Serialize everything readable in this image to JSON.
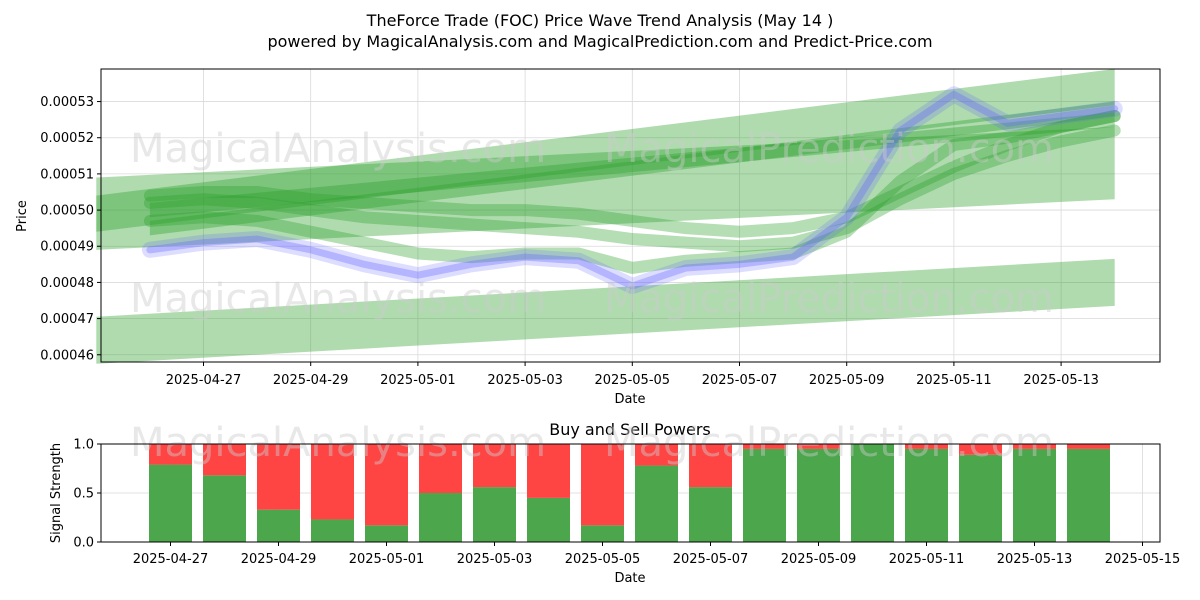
{
  "title_line1": "TheForce Trade (FOC) Price Wave Trend Analysis (May 14 )",
  "title_line2": "powered by MagicalAnalysis.com and MagicalPrediction.com and Predict-Price.com",
  "watermarks": [
    "MagicalAnalysis.com",
    "MagicalPrediction.com"
  ],
  "colors": {
    "band": "#2ca02c",
    "price": "#6666ff",
    "buy": "#4ca64c",
    "sell": "#ff4444",
    "grid": "#d9d9d9"
  },
  "chart_data": [
    {
      "type": "area",
      "xlabel": "Date",
      "ylabel": "Price",
      "x_ticks": [
        "2025-04-27",
        "2025-04-29",
        "2025-05-01",
        "2025-05-03",
        "2025-05-05",
        "2025-05-07",
        "2025-05-09",
        "2025-05-11",
        "2025-05-13"
      ],
      "y_ticks": [
        "0.00046",
        "0.00047",
        "0.00048",
        "0.00049",
        "0.00050",
        "0.00051",
        "0.00052",
        "0.00053"
      ],
      "ylim": [
        0.000458,
        0.000539
      ],
      "grid": true,
      "price_series": {
        "dates": [
          "2025-04-26",
          "2025-04-27",
          "2025-04-28",
          "2025-04-29",
          "2025-04-30",
          "2025-05-01",
          "2025-05-02",
          "2025-05-03",
          "2025-05-04",
          "2025-05-05",
          "2025-05-06",
          "2025-05-07",
          "2025-05-08",
          "2025-05-09",
          "2025-05-10",
          "2025-05-11",
          "2025-05-12",
          "2025-05-13",
          "2025-05-14"
        ],
        "values": [
          0.000489,
          0.000491,
          0.000492,
          0.000489,
          0.000485,
          0.000482,
          0.000485,
          0.000487,
          0.000486,
          0.000479,
          0.000484,
          0.000485,
          0.000487,
          0.000498,
          0.000522,
          0.000532,
          0.000524,
          0.000526,
          0.000528
        ]
      },
      "trend_bands": [
        {
          "start": [
            "2025-04-25",
            0.000499
          ],
          "end": [
            "2025-05-14",
            0.000534
          ],
          "width": 1e-05
        },
        {
          "start": [
            "2025-04-25",
            0.000499
          ],
          "end": [
            "2025-05-14",
            0.000513
          ],
          "width": 2e-05
        },
        {
          "start": [
            "2025-04-25",
            0.000464
          ],
          "end": [
            "2025-05-14",
            0.00048
          ],
          "width": 1.3e-05
        },
        {
          "start": [
            "2025-04-26",
            0.0005
          ],
          "end": [
            "2025-05-14",
            0.000525
          ],
          "width": 4e-06
        },
        {
          "start": [
            "2025-04-26",
            0.000495
          ],
          "end": [
            "2025-05-14",
            0.000528
          ],
          "width": 4e-06
        }
      ],
      "wave_series": [
        {
          "dates": [
            "2025-04-26",
            "2025-04-27",
            "2025-04-28",
            "2025-04-29",
            "2025-04-30",
            "2025-05-01",
            "2025-05-02",
            "2025-05-03",
            "2025-05-04",
            "2025-05-05",
            "2025-05-06",
            "2025-05-07",
            "2025-05-08",
            "2025-05-09",
            "2025-05-10",
            "2025-05-11",
            "2025-05-12",
            "2025-05-13",
            "2025-05-14"
          ],
          "values": [
            0.000502,
            0.000503,
            0.000502,
            0.0005,
            0.000498,
            0.000497,
            0.000496,
            0.000495,
            0.000494,
            0.000492,
            0.000491,
            0.00049,
            0.000491,
            0.000495,
            0.000503,
            0.00051,
            0.000515,
            0.000519,
            0.000522
          ]
        },
        {
          "dates": [
            "2025-04-26",
            "2025-04-27",
            "2025-04-28",
            "2025-04-29",
            "2025-04-30",
            "2025-05-01",
            "2025-05-02",
            "2025-05-03",
            "2025-05-04",
            "2025-05-05",
            "2025-05-06",
            "2025-05-07",
            "2025-05-08",
            "2025-05-09",
            "2025-05-10",
            "2025-05-11",
            "2025-05-12",
            "2025-05-13",
            "2025-05-14"
          ],
          "values": [
            0.000497,
            0.000498,
            0.000497,
            0.000494,
            0.000491,
            0.000488,
            0.000487,
            0.000488,
            0.000488,
            0.000484,
            0.000486,
            0.000487,
            0.000488,
            0.000494,
            0.000508,
            0.000518,
            0.00052,
            0.000523,
            0.000526
          ]
        },
        {
          "dates": [
            "2025-04-26",
            "2025-04-27",
            "2025-04-28",
            "2025-04-29",
            "2025-04-30",
            "2025-05-01",
            "2025-05-02",
            "2025-05-03",
            "2025-05-04",
            "2025-05-05",
            "2025-05-06",
            "2025-05-07",
            "2025-05-08",
            "2025-05-09",
            "2025-05-10",
            "2025-05-11",
            "2025-05-12",
            "2025-05-13",
            "2025-05-14"
          ],
          "values": [
            0.000504,
            0.000505,
            0.000505,
            0.000503,
            0.000502,
            0.000501,
            0.0005,
            0.0005,
            0.000499,
            0.000497,
            0.000495,
            0.000494,
            0.000495,
            0.000498,
            0.000505,
            0.000512,
            0.000518,
            0.000523,
            0.000526
          ]
        }
      ]
    },
    {
      "type": "bar",
      "title": "Buy and Sell Powers",
      "xlabel": "Date",
      "ylabel": "Signal Strength",
      "x_ticks": [
        "2025-04-27",
        "2025-04-29",
        "2025-05-01",
        "2025-05-03",
        "2025-05-05",
        "2025-05-07",
        "2025-05-09",
        "2025-05-11",
        "2025-05-13",
        "2025-05-15"
      ],
      "y_ticks": [
        "0.0",
        "0.5",
        "1.0"
      ],
      "ylim": [
        0,
        1
      ],
      "categories": [
        "2025-04-27",
        "2025-04-28",
        "2025-04-29",
        "2025-04-30",
        "2025-05-01",
        "2025-05-02",
        "2025-05-03",
        "2025-05-04",
        "2025-05-05",
        "2025-05-06",
        "2025-05-07",
        "2025-05-08",
        "2025-05-09",
        "2025-05-10",
        "2025-05-11",
        "2025-05-12",
        "2025-05-13",
        "2025-05-14"
      ],
      "series": [
        {
          "values": [
            0.79,
            0.68,
            0.33,
            0.23,
            0.17,
            0.5,
            0.56,
            0.45,
            0.17,
            0.78,
            0.56,
            0.95,
            0.95,
            1.0,
            0.95,
            0.89,
            0.95,
            0.95
          ]
        },
        {
          "values": [
            0.21,
            0.32,
            0.67,
            0.77,
            0.83,
            0.5,
            0.44,
            0.55,
            0.83,
            0.22,
            0.44,
            0.05,
            0.05,
            0.0,
            0.05,
            0.11,
            0.05,
            0.05
          ]
        }
      ]
    }
  ]
}
